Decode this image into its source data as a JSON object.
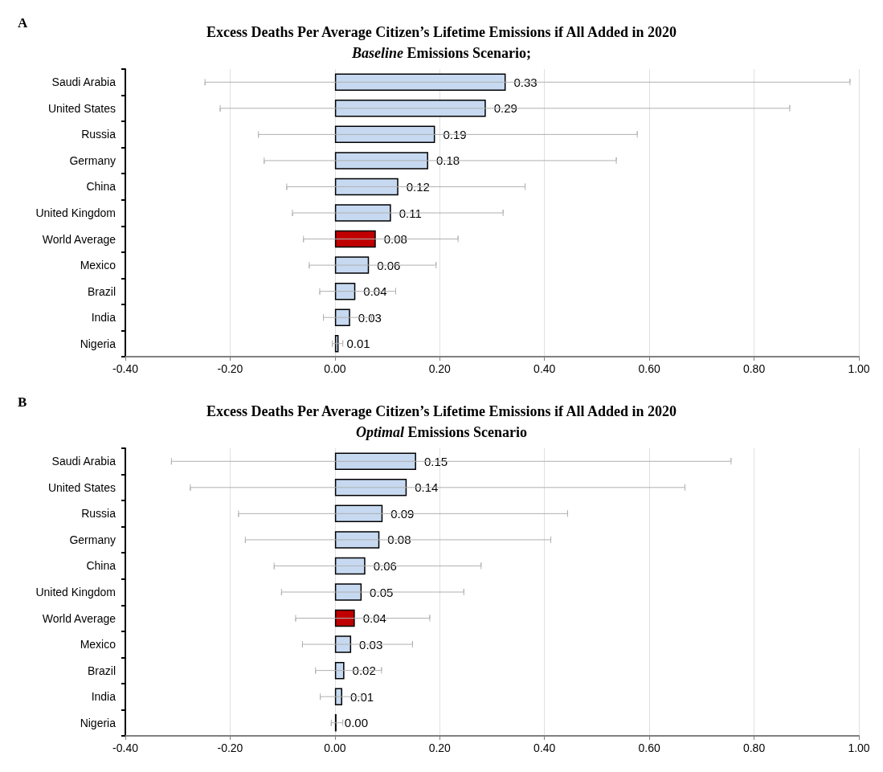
{
  "chart_data": [
    {
      "type": "bar",
      "orientation": "horizontal",
      "title": "Excess Deaths Per Average Citizen’s Lifetime Emissions if All Added in 2020",
      "subtitle": "Baseline Emissions Scenario;",
      "annotations": [
        "A"
      ],
      "categories": [
        "Saudi Arabia",
        "United States",
        "Russia",
        "Germany",
        "China",
        "United Kingdom",
        "World Average",
        "Mexico",
        "Brazil",
        "India",
        "Nigeria"
      ],
      "values": [
        0.326,
        0.288,
        0.191,
        0.178,
        0.121,
        0.107,
        0.078,
        0.065,
        0.039,
        0.029,
        0.007
      ],
      "value_labels": [
        "0.33",
        "0.29",
        "0.19",
        "0.18",
        "0.12",
        "0.11",
        "0.08",
        "0.06",
        "0.04",
        "0.03",
        "0.01"
      ],
      "colors": [
        "#c6d9f1",
        "#c6d9f1",
        "#c6d9f1",
        "#c6d9f1",
        "#c6d9f1",
        "#c6d9f1",
        "#c00000",
        "#c6d9f1",
        "#c6d9f1",
        "#c6d9f1",
        "#c6d9f1"
      ],
      "errors": [
        [
          -0.248,
          0.983
        ],
        [
          -0.219,
          0.868
        ],
        [
          -0.146,
          0.577
        ],
        [
          -0.135,
          0.537
        ],
        [
          -0.092,
          0.363
        ],
        [
          -0.081,
          0.321
        ],
        [
          -0.06,
          0.235
        ],
        [
          -0.049,
          0.193
        ],
        [
          -0.029,
          0.116
        ],
        [
          -0.022,
          0.07
        ],
        [
          -0.005,
          0.015
        ]
      ],
      "xlim": [
        -0.4,
        1.0
      ],
      "xticks": [
        {
          "value": -0.4,
          "label": "-0.40"
        },
        {
          "value": -0.2,
          "label": "-0.20"
        },
        {
          "value": 0,
          "label": "0.00"
        },
        {
          "value": 0.2,
          "label": "0.20"
        },
        {
          "value": 0.4,
          "label": "0.40"
        },
        {
          "value": 0.6,
          "label": "0.60"
        },
        {
          "value": 0.8,
          "label": "0.80"
        },
        {
          "value": 1.0,
          "label": "1.00"
        }
      ],
      "grid": "x"
    },
    {
      "type": "bar",
      "orientation": "horizontal",
      "title": "Excess Deaths Per Average Citizen’s Lifetime Emissions if All Added in 2020",
      "subtitle": "Optimal Emissions Scenario",
      "annotations": [
        "B"
      ],
      "categories": [
        "Saudi Arabia",
        "United States",
        "Russia",
        "Germany",
        "China",
        "United Kingdom",
        "World Average",
        "Mexico",
        "Brazil",
        "India",
        "Nigeria"
      ],
      "values": [
        0.155,
        0.137,
        0.091,
        0.085,
        0.058,
        0.051,
        0.038,
        0.031,
        0.018,
        0.014,
        0.003
      ],
      "value_labels": [
        "0.15",
        "0.14",
        "0.09",
        "0.08",
        "0.06",
        "0.05",
        "0.04",
        "0.03",
        "0.02",
        "0.01",
        "0.00"
      ],
      "colors": [
        "#c6d9f1",
        "#c6d9f1",
        "#c6d9f1",
        "#c6d9f1",
        "#c6d9f1",
        "#c6d9f1",
        "#c00000",
        "#c6d9f1",
        "#c6d9f1",
        "#c6d9f1",
        "#c6d9f1"
      ],
      "errors": [
        [
          -0.312,
          0.756
        ],
        [
          -0.276,
          0.668
        ],
        [
          -0.184,
          0.444
        ],
        [
          -0.171,
          0.412
        ],
        [
          -0.116,
          0.279
        ],
        [
          -0.102,
          0.246
        ],
        [
          -0.075,
          0.181
        ],
        [
          -0.062,
          0.148
        ],
        [
          -0.037,
          0.089
        ],
        [
          -0.028,
          0.05
        ],
        [
          -0.007,
          0.015
        ]
      ],
      "xlim": [
        -0.4,
        1.0
      ],
      "xticks": [
        {
          "value": -0.4,
          "label": "-0.40"
        },
        {
          "value": -0.2,
          "label": "-0.20"
        },
        {
          "value": 0,
          "label": "0.00"
        },
        {
          "value": 0.2,
          "label": "0.20"
        },
        {
          "value": 0.4,
          "label": "0.40"
        },
        {
          "value": 0.6,
          "label": "0.60"
        },
        {
          "value": 0.8,
          "label": "0.80"
        },
        {
          "value": 1.0,
          "label": "1.00"
        }
      ],
      "grid": "x"
    }
  ]
}
